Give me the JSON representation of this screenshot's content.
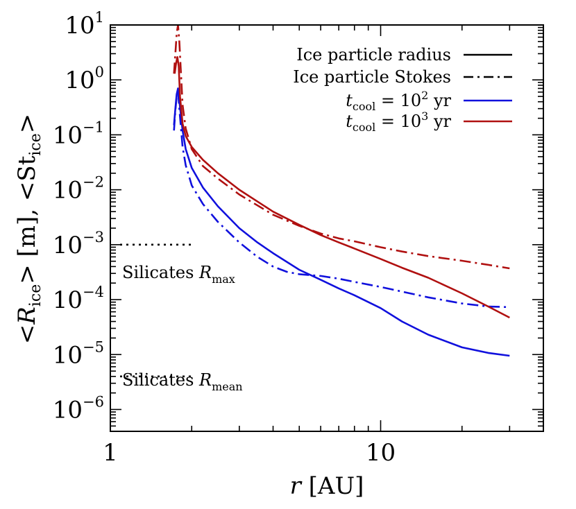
{
  "chart_data": {
    "type": "line",
    "title": "",
    "xlabel": {
      "var": "r",
      "rest": " [AU]"
    },
    "ylabel": {
      "p1": "<",
      "v1": "R",
      "s1": "ice",
      "p2": "> [m], <St",
      "s2": "ice",
      "p3": ">"
    },
    "xscale": "log",
    "yscale": "log",
    "xlim": [
      1,
      40
    ],
    "ylim": [
      4e-07,
      10
    ],
    "xticks": [
      {
        "value": 1,
        "label": "1"
      },
      {
        "value": 10,
        "label": "10"
      }
    ],
    "yticks": [
      {
        "value": 10,
        "base": "10",
        "exp": "1"
      },
      {
        "value": 1,
        "base": "10",
        "exp": "0"
      },
      {
        "value": 0.1,
        "base": "10",
        "exp": "−1"
      },
      {
        "value": 0.01,
        "base": "10",
        "exp": "−2"
      },
      {
        "value": 0.001,
        "base": "10",
        "exp": "−3"
      },
      {
        "value": 0.0001,
        "base": "10",
        "exp": "−4"
      },
      {
        "value": 1e-05,
        "base": "10",
        "exp": "−5"
      },
      {
        "value": 1e-06,
        "base": "10",
        "exp": "−6"
      }
    ],
    "legend": {
      "placement": "top-right",
      "entries": [
        {
          "label": "Ice particle radius",
          "style": "solid",
          "color": "#000000"
        },
        {
          "label": "Ice particle Stokes",
          "style": "dashdot",
          "color": "#000000"
        },
        {
          "var": "t",
          "sub": "cool",
          "mid": " = 10",
          "sup": "2",
          "unit": " yr",
          "style": "solid",
          "color": "#1010dd"
        },
        {
          "var": "t",
          "sub": "cool",
          "mid": " = 10",
          "sup": "3",
          "unit": " yr",
          "style": "solid",
          "color": "#b01010"
        }
      ]
    },
    "series": [
      {
        "name": "Ice particle radius, t_cool = 10^2 yr",
        "color": "#1010dd",
        "style": "solid",
        "x": [
          1.72,
          1.74,
          1.76,
          1.78,
          1.8,
          1.85,
          1.9,
          2.0,
          2.2,
          2.5,
          3.0,
          3.5,
          4.0,
          5.0,
          6.0,
          7.0,
          8.0,
          10.0,
          12.0,
          15.0,
          20.0,
          25.0,
          30.0
        ],
        "y": [
          0.15,
          0.3,
          0.55,
          0.7,
          0.42,
          0.12,
          0.055,
          0.025,
          0.011,
          0.005,
          0.002,
          0.0011,
          0.0007,
          0.00035,
          0.00023,
          0.00016,
          0.00012,
          7e-05,
          4e-05,
          2.3e-05,
          1.35e-05,
          1.07e-05,
          9.5e-06
        ]
      },
      {
        "name": "Ice particle Stokes, t_cool = 10^2 yr",
        "color": "#1010dd",
        "style": "dashdot",
        "x": [
          1.72,
          1.74,
          1.76,
          1.78,
          1.8,
          1.85,
          1.9,
          2.0,
          2.2,
          2.5,
          3.0,
          3.5,
          4.0,
          4.5,
          5.0,
          6.0,
          7.0,
          8.0,
          10.0,
          12.0,
          15.0,
          20.0,
          25.0,
          30.0
        ],
        "y": [
          0.12,
          0.28,
          0.5,
          0.65,
          0.3,
          0.06,
          0.028,
          0.012,
          0.0055,
          0.0026,
          0.0011,
          0.0006,
          0.0004,
          0.00032,
          0.00029,
          0.00027,
          0.00024,
          0.00021,
          0.00017,
          0.00014,
          0.00011,
          8.5e-05,
          7.5e-05,
          7.3e-05
        ]
      },
      {
        "name": "Ice particle radius, t_cool = 10^3 yr",
        "color": "#b01010",
        "style": "solid",
        "x": [
          1.73,
          1.75,
          1.77,
          1.79,
          1.81,
          1.85,
          1.9,
          2.0,
          2.2,
          2.5,
          3.0,
          4.0,
          5.0,
          6.0,
          7.0,
          8.0,
          10.0,
          12.0,
          15.0,
          20.0,
          25.0,
          30.0
        ],
        "y": [
          1.3,
          2.0,
          2.6,
          1.8,
          0.5,
          0.16,
          0.095,
          0.06,
          0.035,
          0.02,
          0.01,
          0.004,
          0.0023,
          0.0015,
          0.0011,
          0.00085,
          0.00055,
          0.00038,
          0.00025,
          0.00013,
          7.5e-05,
          4.7e-05
        ]
      },
      {
        "name": "Ice particle Stokes, t_cool = 10^3 yr",
        "color": "#b01010",
        "style": "dashdot",
        "x": [
          1.72,
          1.74,
          1.76,
          1.78,
          1.8,
          1.85,
          1.9,
          2.0,
          2.2,
          2.5,
          3.0,
          4.0,
          5.0,
          6.0,
          7.0,
          8.0,
          10.0,
          12.0,
          15.0,
          20.0,
          25.0,
          30.0
        ],
        "y": [
          1.3,
          3.0,
          7.0,
          10.0,
          5.0,
          0.35,
          0.13,
          0.055,
          0.027,
          0.016,
          0.0082,
          0.0035,
          0.0022,
          0.0016,
          0.0013,
          0.00115,
          0.0009,
          0.00075,
          0.00062,
          0.00051,
          0.00043,
          0.00037
        ]
      }
    ],
    "annotations": [
      {
        "name": "Silicates R_max",
        "pre": "Silicates ",
        "var": "R",
        "sub": "max",
        "x": [
          1,
          2
        ],
        "y": 0.001,
        "style": "dotted"
      },
      {
        "name": "Silicates R_mean",
        "pre": "Silicates ",
        "var": "R",
        "sub": "mean",
        "x": [
          1,
          2
        ],
        "y": 4e-06,
        "style": "dotted"
      }
    ]
  }
}
